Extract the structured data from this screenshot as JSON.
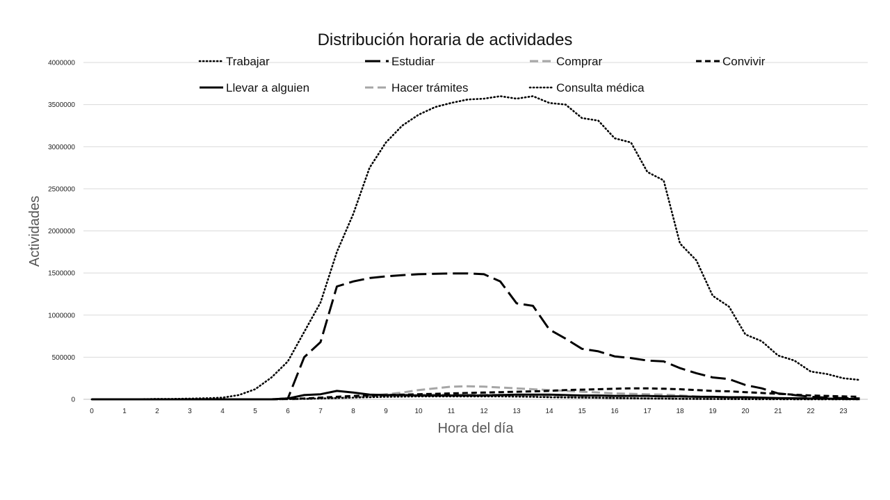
{
  "chart_data": {
    "type": "line",
    "title": "Distribución horaria de actividades",
    "xlabel": "Hora del día",
    "ylabel": "Actividades",
    "x_tick_labels": [
      "0",
      "1",
      "2",
      "3",
      "4",
      "5",
      "6",
      "7",
      "8",
      "9",
      "10",
      "11",
      "12",
      "13",
      "14",
      "15",
      "16",
      "17",
      "18",
      "19",
      "20",
      "21",
      "22",
      "23"
    ],
    "y_tick_labels": [
      "0",
      "500000",
      "1000000",
      "1500000",
      "2000000",
      "2500000",
      "3000000",
      "3500000",
      "4000000"
    ],
    "ylim": [
      0,
      4000000
    ],
    "xlim": [
      0,
      23.5
    ],
    "grid": "horizontal",
    "legend_position": "top",
    "x": [
      0,
      0.5,
      1,
      1.5,
      2,
      2.5,
      3,
      3.5,
      4,
      4.5,
      5,
      5.5,
      6,
      6.5,
      7,
      7.5,
      8,
      8.5,
      9,
      9.5,
      10,
      10.5,
      11,
      11.5,
      12,
      12.5,
      13,
      13.5,
      14,
      14.5,
      15,
      15.5,
      16,
      16.5,
      17,
      17.5,
      18,
      18.5,
      19,
      19.5,
      20,
      20.5,
      21,
      21.5,
      22,
      22.5,
      23,
      23.5
    ],
    "series": [
      {
        "name": "Trabajar",
        "style": "dotted",
        "color": "#000000",
        "values": [
          0,
          0,
          0,
          2000,
          5000,
          5000,
          8000,
          12000,
          20000,
          50000,
          120000,
          260000,
          450000,
          800000,
          1150000,
          1750000,
          2200000,
          2750000,
          3050000,
          3250000,
          3380000,
          3470000,
          3520000,
          3560000,
          3570000,
          3600000,
          3570000,
          3600000,
          3520000,
          3500000,
          3340000,
          3310000,
          3100000,
          3050000,
          2700000,
          2600000,
          1850000,
          1650000,
          1230000,
          1100000,
          770000,
          690000,
          520000,
          460000,
          330000,
          300000,
          250000,
          230000
        ]
      },
      {
        "name": "Estudiar",
        "style": "longdash",
        "color": "#000000",
        "values": [
          0,
          0,
          0,
          0,
          0,
          0,
          0,
          0,
          0,
          0,
          0,
          0,
          10000,
          500000,
          680000,
          1340000,
          1400000,
          1440000,
          1460000,
          1475000,
          1485000,
          1490000,
          1495000,
          1495000,
          1485000,
          1400000,
          1140000,
          1110000,
          830000,
          720000,
          600000,
          570000,
          510000,
          490000,
          460000,
          450000,
          370000,
          310000,
          260000,
          240000,
          170000,
          130000,
          70000,
          50000,
          30000,
          20000,
          15000,
          10000
        ]
      },
      {
        "name": "Comprar",
        "style": "dashed",
        "color": "#a6a6a6",
        "values": [
          0,
          0,
          0,
          0,
          0,
          0,
          0,
          0,
          0,
          0,
          0,
          0,
          2000,
          5000,
          10000,
          15000,
          25000,
          40000,
          60000,
          80000,
          110000,
          130000,
          150000,
          155000,
          150000,
          140000,
          130000,
          120000,
          110000,
          100000,
          90000,
          80000,
          70000,
          65000,
          60000,
          55000,
          45000,
          35000,
          25000,
          20000,
          15000,
          12000,
          10000,
          8000,
          5000,
          4000,
          3000,
          2000
        ]
      },
      {
        "name": "Convivir",
        "style": "shortdash",
        "color": "#000000",
        "values": [
          0,
          0,
          0,
          0,
          0,
          0,
          0,
          0,
          0,
          0,
          0,
          0,
          5000,
          10000,
          20000,
          30000,
          40000,
          45000,
          50000,
          55000,
          60000,
          65000,
          70000,
          75000,
          80000,
          85000,
          90000,
          95000,
          100000,
          110000,
          115000,
          120000,
          125000,
          130000,
          130000,
          125000,
          120000,
          110000,
          100000,
          95000,
          85000,
          75000,
          65000,
          55000,
          45000,
          40000,
          35000,
          30000
        ]
      },
      {
        "name": "Llevar a alguien",
        "style": "solid",
        "color": "#000000",
        "values": [
          0,
          0,
          0,
          0,
          0,
          0,
          0,
          0,
          0,
          0,
          0,
          0,
          10000,
          50000,
          60000,
          100000,
          80000,
          55000,
          50000,
          50000,
          45000,
          45000,
          45000,
          45000,
          45000,
          50000,
          55000,
          55000,
          55000,
          50000,
          45000,
          45000,
          40000,
          40000,
          40000,
          35000,
          35000,
          30000,
          30000,
          25000,
          25000,
          20000,
          15000,
          12000,
          10000,
          8000,
          5000,
          3000
        ]
      },
      {
        "name": "Hacer  trámites",
        "style": "dashed",
        "color": "#a6a6a6",
        "values": [
          0,
          0,
          0,
          0,
          0,
          0,
          0,
          0,
          0,
          0,
          0,
          0,
          2000,
          5000,
          10000,
          15000,
          25000,
          35000,
          45000,
          50000,
          55000,
          55000,
          55000,
          55000,
          55000,
          50000,
          45000,
          40000,
          35000,
          30000,
          25000,
          20000,
          15000,
          12000,
          10000,
          8000,
          6000,
          5000,
          4000,
          3000,
          2500,
          2000,
          1500,
          1000,
          1000,
          500,
          500,
          0
        ]
      },
      {
        "name": "Consulta médica",
        "style": "dotted",
        "color": "#000000",
        "values": [
          0,
          0,
          0,
          0,
          0,
          0,
          0,
          0,
          0,
          0,
          0,
          0,
          3000,
          6000,
          10000,
          15000,
          20000,
          25000,
          30000,
          32000,
          35000,
          35000,
          35000,
          35000,
          35000,
          35000,
          32000,
          30000,
          25000,
          22000,
          20000,
          18000,
          15000,
          12000,
          10000,
          8000,
          6000,
          5000,
          4000,
          3000,
          2500,
          2000,
          1500,
          1000,
          800,
          500,
          300,
          0
        ]
      }
    ]
  }
}
